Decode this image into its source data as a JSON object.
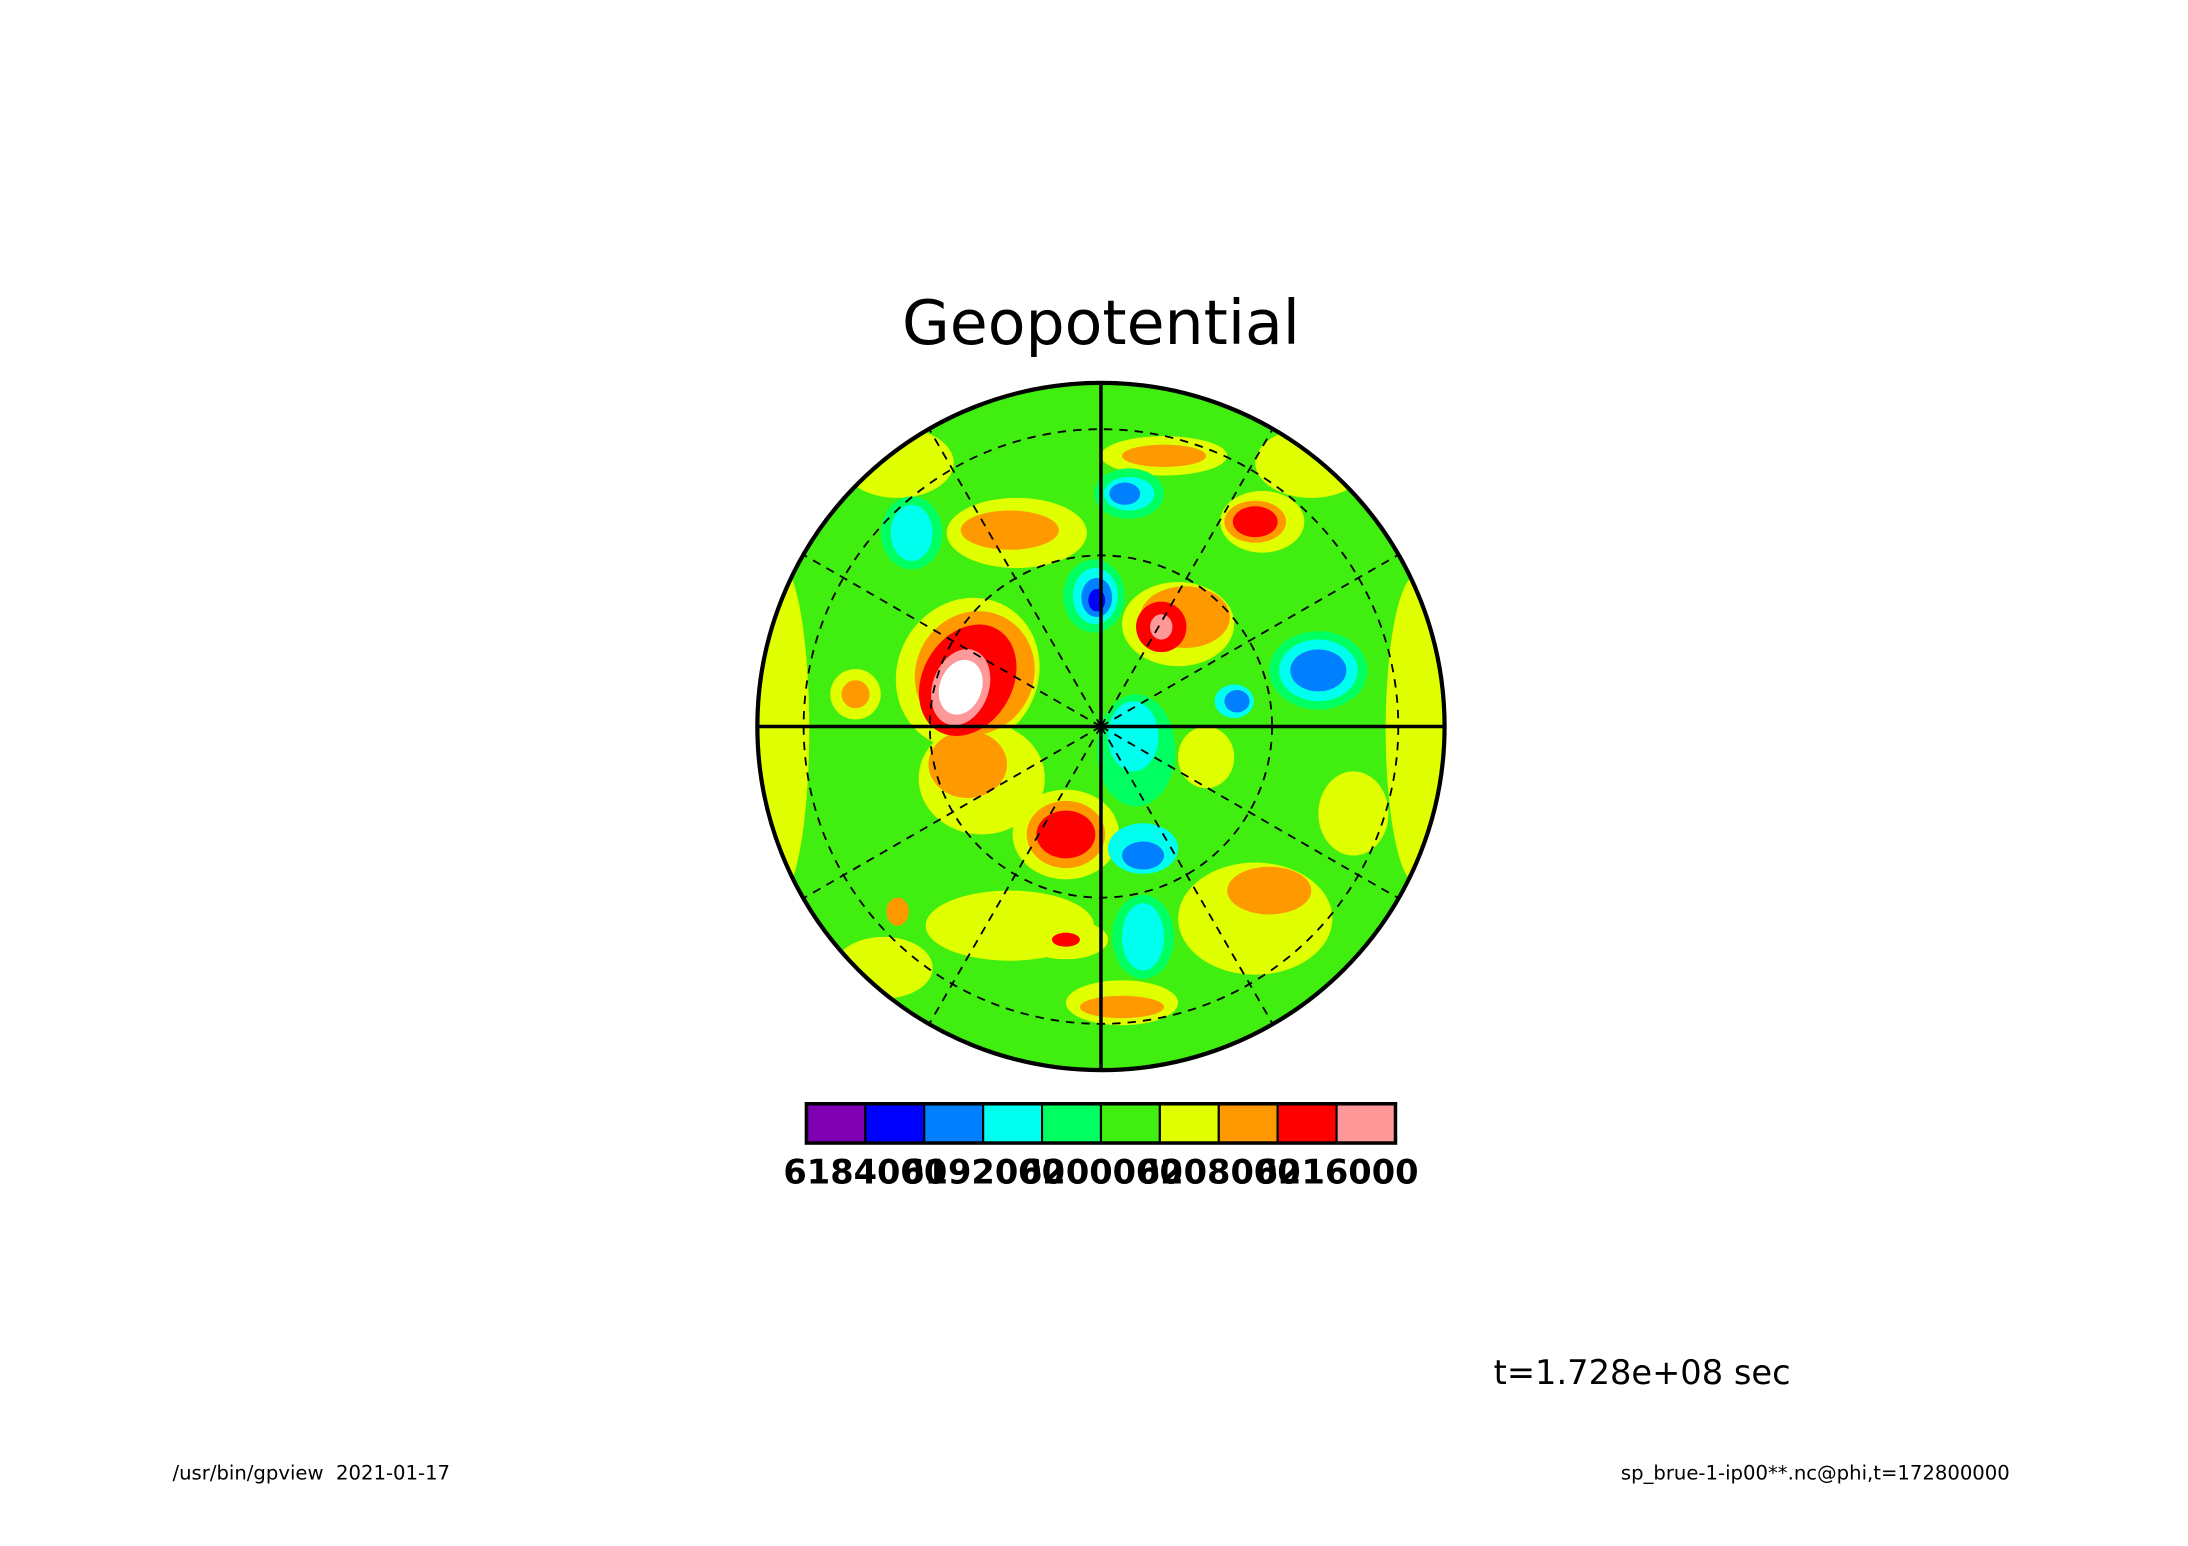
{
  "chart_data": {
    "type": "contour",
    "title": "Geopotential",
    "colorbar": {
      "xlim": [
        6180000,
        6220000
      ],
      "xticks": [
        6184000,
        6192000,
        6200000,
        6208000,
        6216000
      ],
      "colors": [
        "#7f00b2",
        "#0000ff",
        "#0080ff",
        "#00ffee",
        "#00ff60",
        "#40ee10",
        "#e0ff00",
        "#ff9900",
        "#ff0000",
        "#ff9999"
      ]
    },
    "annotation": "t=1.728e+08 sec",
    "footer_left": "/usr/bin/gpview  2021-01-17",
    "footer_right": "sp_brue-1-ip00**.nc@phi,t=172800000"
  }
}
